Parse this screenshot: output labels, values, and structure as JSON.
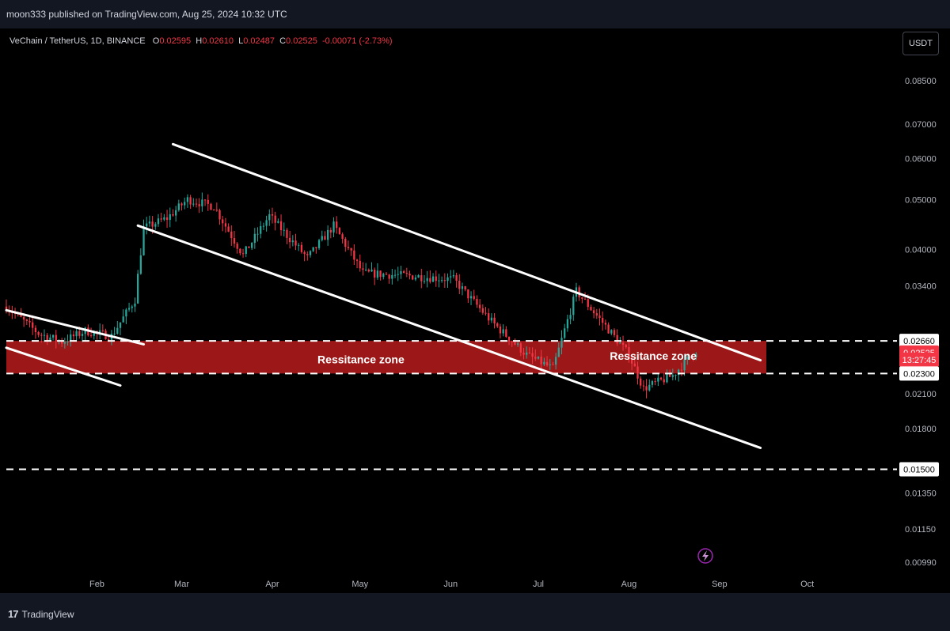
{
  "publisher": "moon333 published on TradingView.com, Aug 25, 2024 10:32 UTC",
  "symbol": "VeChain / TetherUS, 1D, BINANCE",
  "ohlc": {
    "o_label": "O",
    "o": "0.02595",
    "h_label": "H",
    "h": "0.02610",
    "l_label": "L",
    "l": "0.02487",
    "c_label": "C",
    "c": "0.02525",
    "change": "-0.00071 (-2.73%)"
  },
  "unit_button": "USDT",
  "footer_logo": "TradingView",
  "footer_mark": "17",
  "colors": {
    "up": "#26a69a",
    "down": "#f23645",
    "zone": "#b71c1c",
    "bg": "#000000",
    "line": "#ffffff"
  },
  "chart_data": {
    "type": "candlestick",
    "y_scale": "log",
    "ylim": [
      0.0092,
      0.105
    ],
    "x_range": [
      "2024-01-01",
      "2024-10-20"
    ],
    "y_ticks": [
      "0.08500",
      "0.07000",
      "0.06000",
      "0.05000",
      "0.04000",
      "0.03400",
      "0.02660",
      "0.02525",
      "0.02300",
      "0.02100",
      "0.01800",
      "0.01500",
      "0.01350",
      "0.01150",
      "0.00990"
    ],
    "x_ticks": [
      {
        "label": "Feb",
        "date": "2024-02-01"
      },
      {
        "label": "Mar",
        "date": "2024-03-01"
      },
      {
        "label": "Apr",
        "date": "2024-04-01"
      },
      {
        "label": "May",
        "date": "2024-05-01"
      },
      {
        "label": "Jun",
        "date": "2024-06-01"
      },
      {
        "label": "Jul",
        "date": "2024-07-01"
      },
      {
        "label": "Aug",
        "date": "2024-08-01"
      },
      {
        "label": "Sep",
        "date": "2024-09-01"
      },
      {
        "label": "Oct",
        "date": "2024-10-01"
      }
    ],
    "price_labels": [
      {
        "text": "0.02660",
        "price": 0.0266,
        "style": "level"
      },
      {
        "text": "0.02525",
        "price": 0.02525,
        "style": "current"
      },
      {
        "text": "13:27:45",
        "price": 0.02445,
        "style": "current"
      },
      {
        "text": "0.02300",
        "price": 0.023,
        "style": "level"
      },
      {
        "text": "0.01500",
        "price": 0.015,
        "style": "level"
      }
    ],
    "horizontal_levels": [
      0.0266,
      0.023,
      0.015
    ],
    "zone": {
      "top": 0.0266,
      "bottom": 0.023,
      "label_left": "Ressitance zone",
      "label_right": "Ressitance zone",
      "label_left_pos": {
        "date": "2024-04-30",
        "price": 0.0245
      },
      "label_right_pos": {
        "date": "2024-08-08",
        "price": 0.0249
      }
    },
    "trendlines": [
      {
        "from": {
          "date": "2024-01-01",
          "price": 0.0305
        },
        "to": {
          "date": "2024-02-17",
          "price": 0.0262
        }
      },
      {
        "from": {
          "date": "2024-01-01",
          "price": 0.0258
        },
        "to": {
          "date": "2024-02-09",
          "price": 0.0218
        }
      },
      {
        "from": {
          "date": "2024-02-27",
          "price": 0.064
        },
        "to": {
          "date": "2024-09-15",
          "price": 0.0244
        }
      },
      {
        "from": {
          "date": "2024-02-15",
          "price": 0.0445
        },
        "to": {
          "date": "2024-09-15",
          "price": 0.0165
        }
      }
    ],
    "waypoints": [
      [
        "2024-01-01",
        0.031
      ],
      [
        "2024-01-12",
        0.0275
      ],
      [
        "2024-01-20",
        0.0265
      ],
      [
        "2024-01-28",
        0.0278
      ],
      [
        "2024-02-06",
        0.0272
      ],
      [
        "2024-02-14",
        0.032
      ],
      [
        "2024-02-17",
        0.044
      ],
      [
        "2024-02-25",
        0.046
      ],
      [
        "2024-03-03",
        0.05
      ],
      [
        "2024-03-12",
        0.0485
      ],
      [
        "2024-03-22",
        0.039
      ],
      [
        "2024-03-31",
        0.0465
      ],
      [
        "2024-04-13",
        0.0385
      ],
      [
        "2024-04-22",
        0.0445
      ],
      [
        "2024-05-02",
        0.036
      ],
      [
        "2024-05-20",
        0.0355
      ],
      [
        "2024-06-02",
        0.035
      ],
      [
        "2024-06-15",
        0.029
      ],
      [
        "2024-06-27",
        0.025
      ],
      [
        "2024-07-06",
        0.0235
      ],
      [
        "2024-07-14",
        0.0332
      ],
      [
        "2024-07-25",
        0.028
      ],
      [
        "2024-08-01",
        0.025
      ],
      [
        "2024-08-06",
        0.0215
      ],
      [
        "2024-08-16",
        0.0228
      ],
      [
        "2024-08-24",
        0.0255
      ]
    ]
  }
}
